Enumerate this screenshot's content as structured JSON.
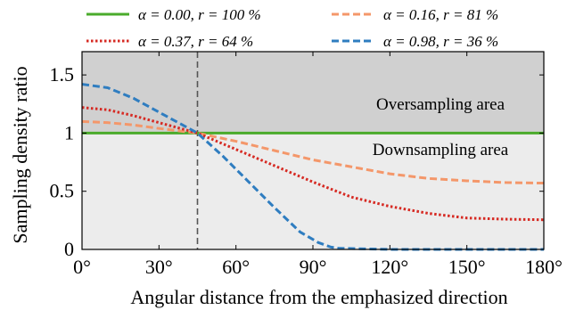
{
  "chart_data": {
    "type": "line",
    "xlabel": "Angular distance from the emphasized direction",
    "ylabel": "Sampling density ratio",
    "xlim": [
      0,
      180
    ],
    "ylim": [
      0,
      1.7
    ],
    "x_ticks": [
      "0°",
      "30°",
      "60°",
      "90°",
      "120°",
      "150°",
      "180°"
    ],
    "x_tick_values": [
      0,
      30,
      60,
      90,
      120,
      150,
      180
    ],
    "y_ticks": [
      "0",
      "0.5",
      "1",
      "1.5"
    ],
    "y_tick_values": [
      0,
      0.5,
      1,
      1.5
    ],
    "grid": false,
    "legend_position": "top",
    "reference_line_x": 45,
    "regions": [
      {
        "label": "Oversampling area",
        "y_range": [
          1,
          1.7
        ],
        "color": "#d0d0d0"
      },
      {
        "label": "Downsampling area",
        "y_range": [
          0,
          1
        ],
        "color": "#ececec"
      }
    ],
    "series": [
      {
        "name": "α = 0.00, r = 100 %",
        "color": "#4aab2b",
        "style": "solid",
        "x": [
          0,
          180
        ],
        "y": [
          1.0,
          1.0
        ]
      },
      {
        "name": "α = 0.16, r = 81 %",
        "color": "#f4976a",
        "style": "dashed",
        "x": [
          0,
          10,
          20,
          30,
          45,
          60,
          75,
          90,
          105,
          120,
          135,
          150,
          165,
          180
        ],
        "y": [
          1.1,
          1.09,
          1.07,
          1.04,
          1.0,
          0.93,
          0.85,
          0.77,
          0.71,
          0.65,
          0.61,
          0.59,
          0.575,
          0.57
        ]
      },
      {
        "name": "α = 0.37, r = 64 %",
        "color": "#d62a23",
        "style": "dotted",
        "x": [
          0,
          10,
          20,
          30,
          45,
          60,
          75,
          90,
          105,
          120,
          135,
          150,
          165,
          180
        ],
        "y": [
          1.22,
          1.2,
          1.15,
          1.09,
          1.0,
          0.86,
          0.72,
          0.58,
          0.45,
          0.37,
          0.31,
          0.27,
          0.26,
          0.255
        ]
      },
      {
        "name": "α = 0.98, r = 36 %",
        "color": "#2f7dc0",
        "style": "dashed",
        "x": [
          0,
          10,
          20,
          30,
          45,
          55,
          65,
          75,
          85,
          92,
          97,
          100,
          110,
          120,
          150,
          180
        ],
        "y": [
          1.42,
          1.39,
          1.3,
          1.18,
          1.0,
          0.8,
          0.58,
          0.36,
          0.15,
          0.06,
          0.02,
          0.01,
          0.005,
          0.0,
          0.0,
          0.0
        ]
      }
    ]
  }
}
